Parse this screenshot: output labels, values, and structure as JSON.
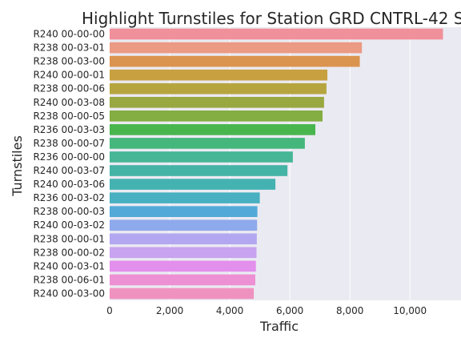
{
  "chart_data": {
    "type": "bar",
    "orientation": "horizontal",
    "title": "Highlight Turnstiles for Station GRD CNTRL-42 S",
    "xlabel": "Traffic",
    "ylabel": "Turnstiles",
    "xlim": [
      0,
      11700
    ],
    "xticks": [
      0,
      2000,
      4000,
      6000,
      8000,
      10000
    ],
    "xtick_labels": [
      "0",
      "2,000",
      "4,000",
      "6,000",
      "8,000",
      "10,000"
    ],
    "grid": true,
    "categories": [
      "R240 00-00-00",
      "R238 00-03-01",
      "R238 00-03-00",
      "R240 00-00-01",
      "R238 00-00-06",
      "R240 00-03-08",
      "R238 00-00-05",
      "R236 00-03-03",
      "R238 00-00-07",
      "R236 00-00-00",
      "R240 00-03-07",
      "R240 00-03-06",
      "R236 00-03-02",
      "R238 00-00-03",
      "R240 00-03-02",
      "R238 00-00-01",
      "R238 00-00-02",
      "R240 00-03-01",
      "R238 00-06-01",
      "R240 00-03-00"
    ],
    "values": [
      11100,
      8400,
      8330,
      7250,
      7220,
      7140,
      7090,
      6850,
      6500,
      6100,
      5920,
      5520,
      5000,
      4920,
      4910,
      4900,
      4890,
      4870,
      4850,
      4800
    ],
    "colors": [
      "#f0909a",
      "#eb9a84",
      "#db944f",
      "#c8a040",
      "#b6a53e",
      "#9aa841",
      "#84ad42",
      "#48b54e",
      "#45b77c",
      "#46b696",
      "#44b4a6",
      "#45b2b2",
      "#48b0c0",
      "#53aad8",
      "#8ea9ec",
      "#b2a7f0",
      "#c7a3f0",
      "#e38fec",
      "#ee90d4",
      "#f092c0"
    ]
  }
}
